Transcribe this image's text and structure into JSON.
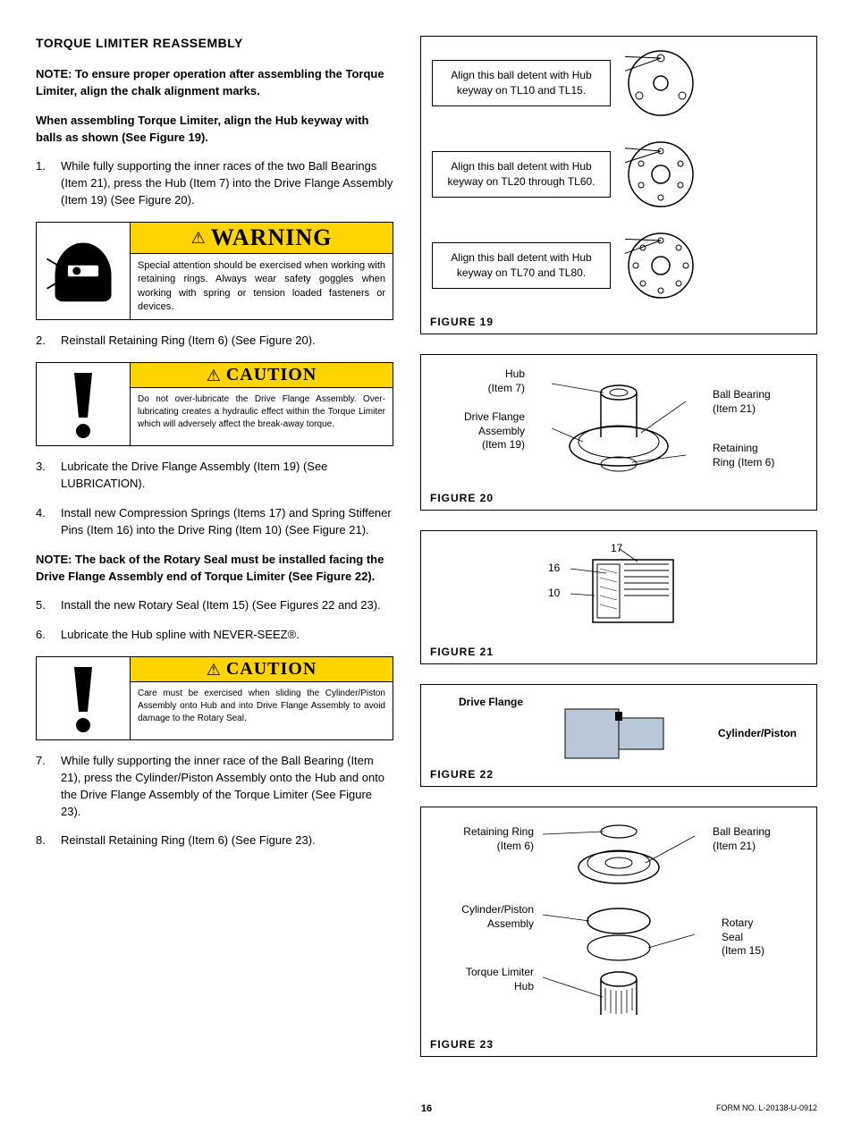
{
  "section_title": "TORQUE LIMITER REASSEMBLY",
  "note1": "NOTE: To ensure proper operation after assembling the Torque Limiter, align the chalk alignment marks.",
  "note2": "When assembling Torque Limiter, align the Hub keyway with balls as shown (See Figure 19).",
  "steps": {
    "s1_num": "1.",
    "s1": "While fully supporting the inner races of the two Ball Bearings (Item 21), press the Hub (Item 7) into the Drive Flange Assembly (Item 19) (See Figure 20).",
    "s2_num": "2.",
    "s2": "Reinstall Retaining Ring (Item 6) (See Figure 20).",
    "s3_num": "3.",
    "s3": "Lubricate the Drive Flange Assembly (Item 19) (See LUBRICATION).",
    "s4_num": "4.",
    "s4": "Install new Compression Springs (Items 17) and Spring Stiffener Pins (Item 16) into the Drive Ring (Item 10) (See Figure 21).",
    "s5_num": "5.",
    "s5": "Install the new Rotary Seal (Item 15) (See Figures 22 and 23).",
    "s6_num": "6.",
    "s6": "Lubricate the Hub spline with NEVER-SEEZ®.",
    "s7_num": "7.",
    "s7": "While fully supporting the inner race of the Ball Bearing (Item 21), press the Cylinder/Piston Assembly onto the Hub and onto the Drive Flange Assembly of the Torque Limiter (See Figure 23).",
    "s8_num": "8.",
    "s8": "Reinstall Retaining Ring (Item 6) (See Figure 23)."
  },
  "note3": "NOTE: The back of the Rotary Seal must be installed facing the Drive Flange Assembly end of Torque Limiter (See Figure 22).",
  "warning": {
    "label": "WARNING",
    "text": "Special attention should be exercised when working with retaining rings. Always wear safety goggles when working with spring or tension loaded fasteners or devices."
  },
  "caution1": {
    "label": "CAUTION",
    "text": "Do not over-lubricate the Drive Flange Assembly. Over-lubricating creates a hydraulic effect within the Torque Limiter which will adversely affect the break-away torque."
  },
  "caution2": {
    "label": "CAUTION",
    "text": "Care must be exercised when sliding the Cylinder/Piston Assembly onto Hub and into Drive Flange Assembly to avoid damage to the Rotary Seal."
  },
  "fig19": {
    "label": "FIGURE 19",
    "row1": "Align this ball detent with Hub keyway on TL10 and TL15.",
    "row2": "Align this ball detent with Hub keyway on TL20 through TL60.",
    "row3": "Align this ball detent with Hub keyway on TL70 and TL80."
  },
  "fig20": {
    "label": "FIGURE 20",
    "hub": "Hub\n(Item 7)",
    "dfa": "Drive Flange\nAssembly\n(Item 19)",
    "bb": "Ball Bearing\n(Item 21)",
    "rr": "Retaining\nRing (Item 6)"
  },
  "fig21": {
    "label": "FIGURE 21",
    "l17": "17",
    "l16": "16",
    "l10": "10"
  },
  "fig22": {
    "label": "FIGURE 22",
    "df": "Drive Flange",
    "cp": "Cylinder/Piston"
  },
  "fig23": {
    "label": "FIGURE 23",
    "rr": "Retaining Ring\n(Item 6)",
    "bb": "Ball Bearing\n(Item 21)",
    "cpa": "Cylinder/Piston\nAssembly",
    "rs": "Rotary\nSeal\n(Item 15)",
    "tlh": "Torque Limiter\nHub"
  },
  "footer": {
    "page": "16",
    "form": "FORM NO. L-20138-U-0912"
  },
  "colors": {
    "alert_bg": "#ffd400",
    "text": "#000000",
    "page_bg": "#ffffff"
  }
}
